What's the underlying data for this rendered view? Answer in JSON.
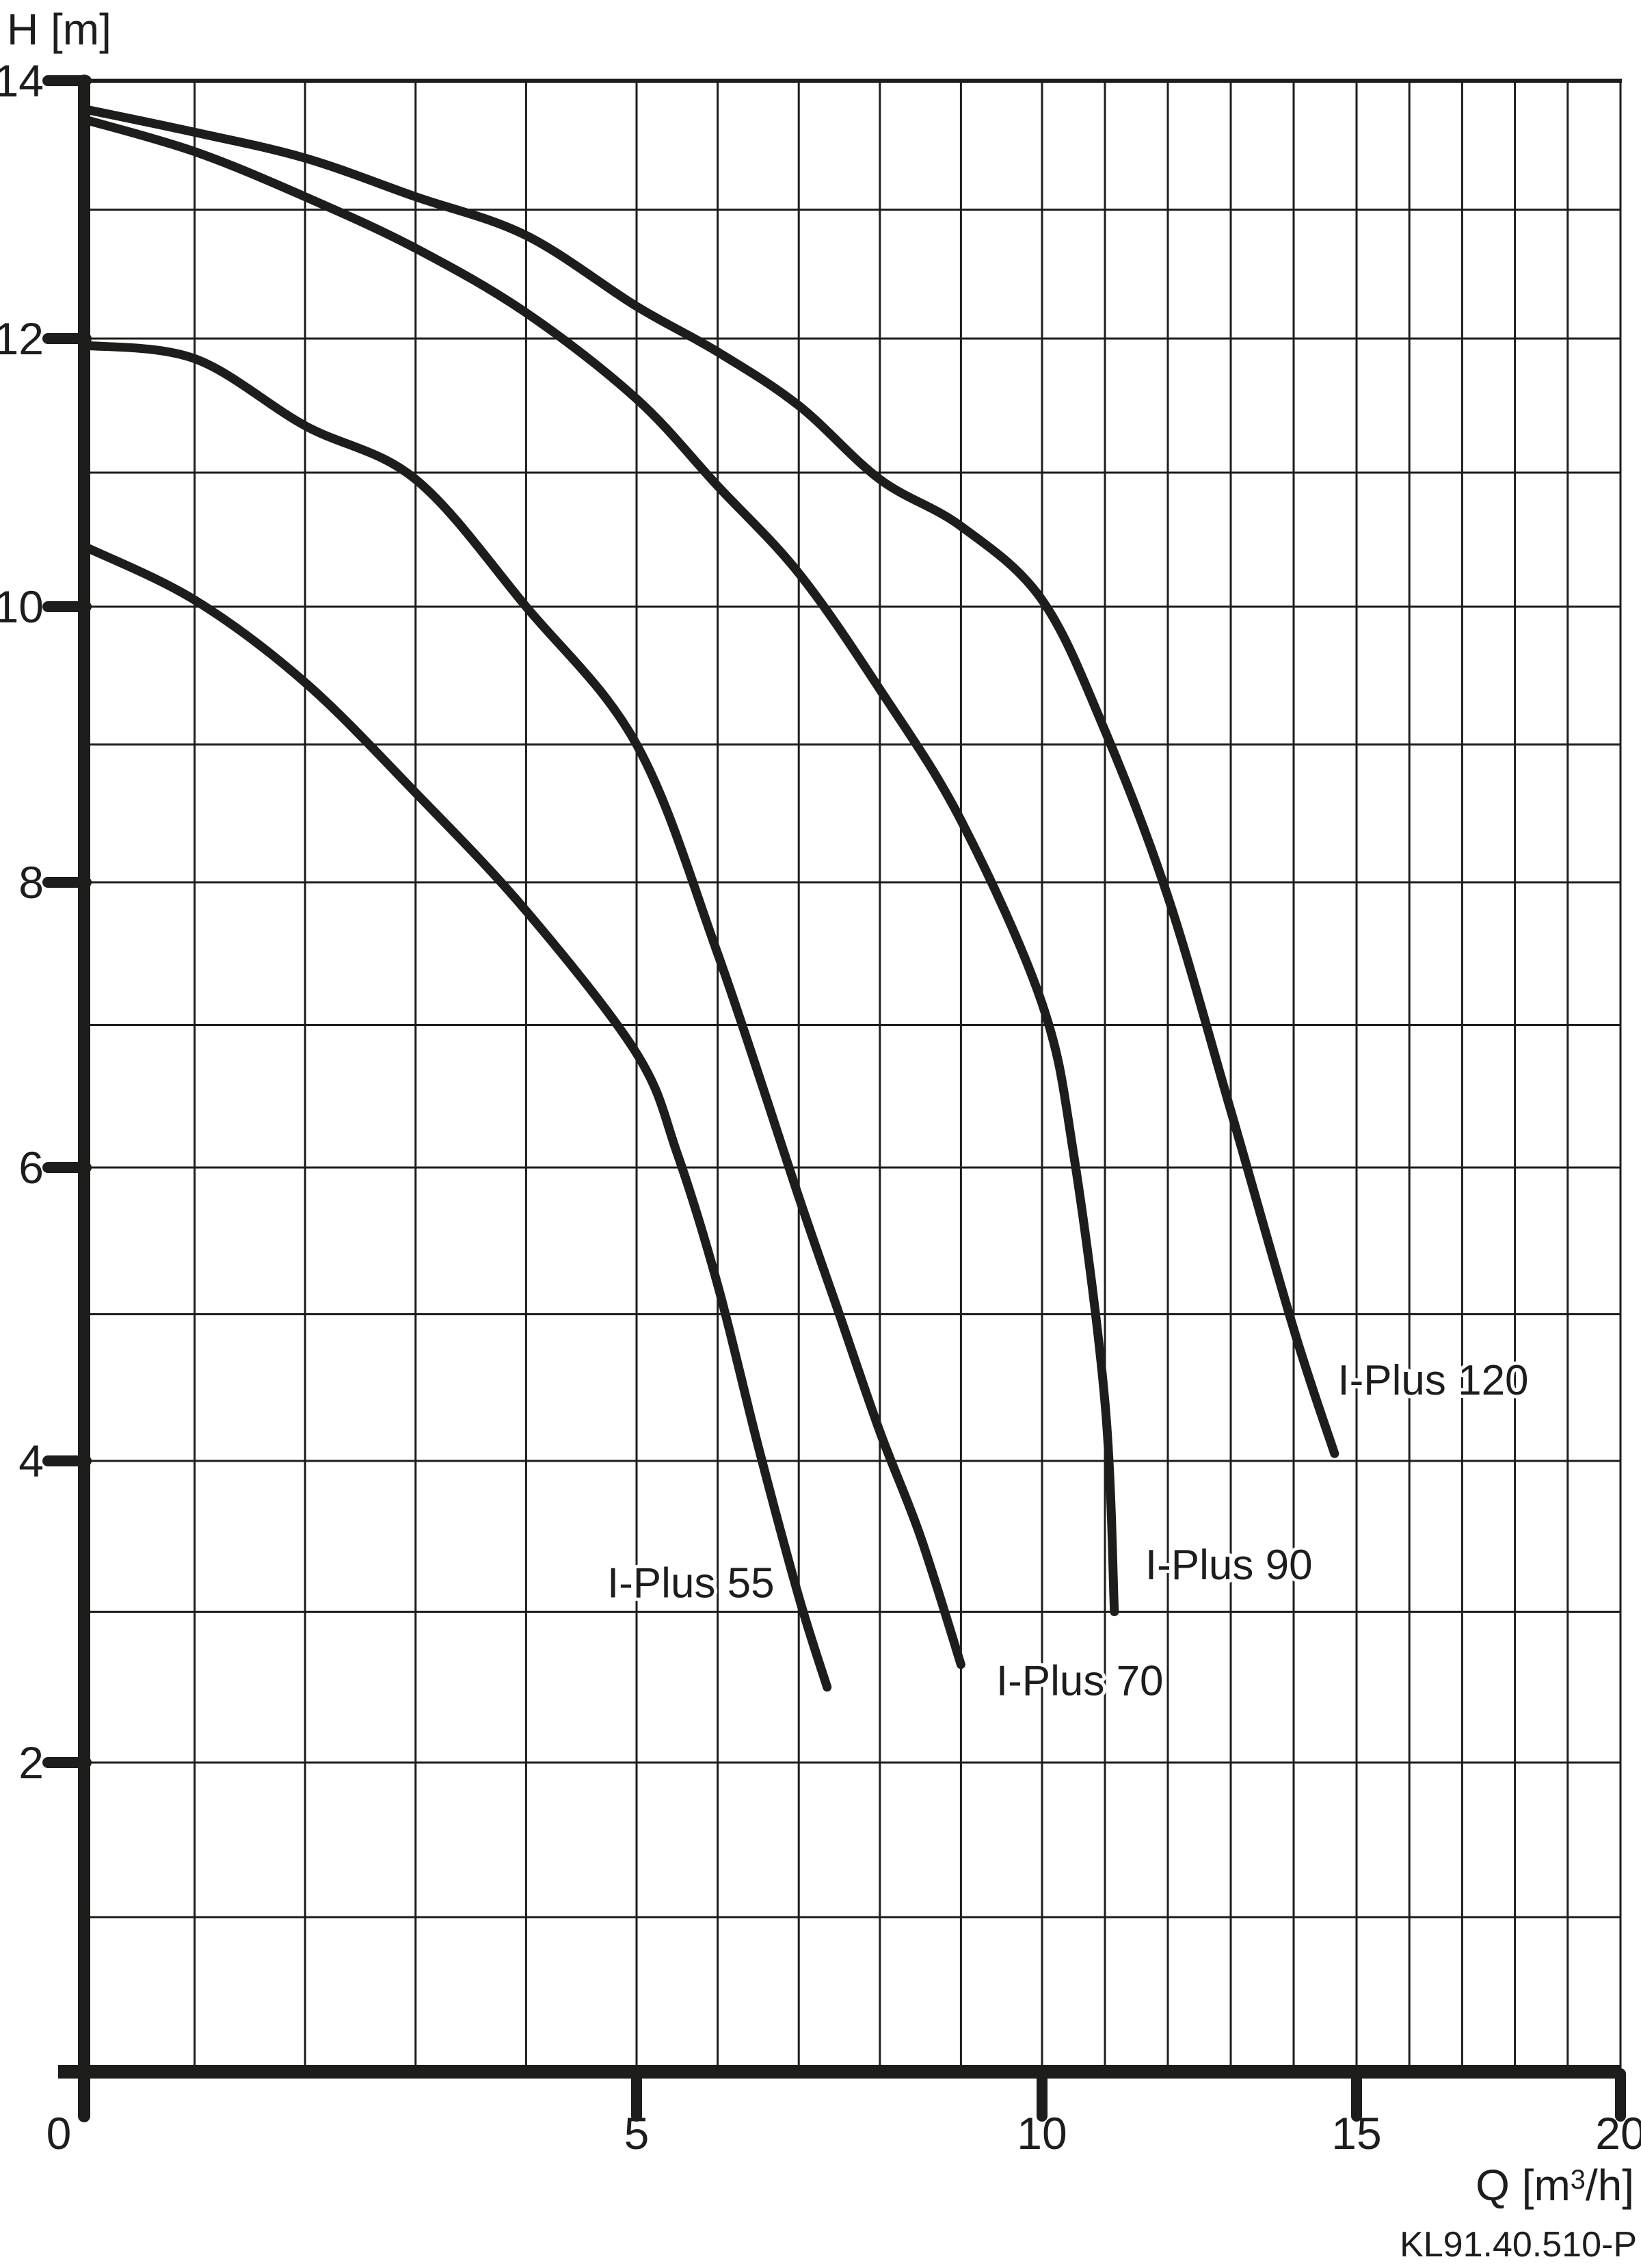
{
  "page": {
    "background": "#ffffff",
    "ink": "#1d1d1b"
  },
  "chart_data": {
    "type": "line",
    "title": "",
    "xlabel": "Q [m³/h]",
    "ylabel": "H [m]",
    "xlim": [
      0,
      20
    ],
    "ylim": [
      0,
      14
    ],
    "x_major_ticks": [
      0,
      5,
      10,
      15,
      20
    ],
    "y_major_ticks": [
      2,
      4,
      6,
      8,
      10,
      12,
      14
    ],
    "x_minor_step": 1,
    "y_minor_step": 1,
    "grid": true,
    "legend_position": "inline-labels-near-curve-ends",
    "series": [
      {
        "name": "I-Plus 55",
        "points": [
          [
            0,
            10.45
          ],
          [
            1,
            10.05
          ],
          [
            2,
            9.45
          ],
          [
            3,
            8.65
          ],
          [
            4,
            7.8
          ],
          [
            5,
            6.8
          ],
          [
            5.5,
            6.1
          ],
          [
            6,
            5.2
          ],
          [
            6.5,
            4.1
          ],
          [
            7,
            3.1
          ],
          [
            7.35,
            2.5
          ]
        ],
        "label_pos": [
          6.7,
          3.2
        ],
        "label_anchor": "end"
      },
      {
        "name": "I-Plus 70",
        "points": [
          [
            0,
            11.95
          ],
          [
            1,
            11.85
          ],
          [
            2,
            11.35
          ],
          [
            3,
            10.95
          ],
          [
            4,
            10.0
          ],
          [
            5,
            9.0
          ],
          [
            6,
            7.5
          ],
          [
            7,
            5.8
          ],
          [
            7.5,
            5.0
          ],
          [
            8,
            4.2
          ],
          [
            8.5,
            3.5
          ],
          [
            9,
            2.65
          ]
        ],
        "label_pos": [
          10.6,
          2.55
        ],
        "label_anchor": "middle"
      },
      {
        "name": "I-Plus 90",
        "points": [
          [
            0,
            13.7
          ],
          [
            1,
            13.45
          ],
          [
            2,
            13.1
          ],
          [
            3,
            12.7
          ],
          [
            4,
            12.2
          ],
          [
            5,
            11.55
          ],
          [
            6,
            10.9
          ],
          [
            7,
            10.25
          ],
          [
            8,
            9.4
          ],
          [
            9,
            8.45
          ],
          [
            10,
            7.15
          ],
          [
            10.5,
            6.1
          ],
          [
            11,
            4.4
          ],
          [
            11.15,
            3.0
          ]
        ],
        "label_pos": [
          11.64,
          3.32
        ],
        "label_anchor": "start"
      },
      {
        "name": "I-Plus 120",
        "points": [
          [
            0,
            13.78
          ],
          [
            1,
            13.6
          ],
          [
            2,
            13.4
          ],
          [
            3,
            13.1
          ],
          [
            4,
            12.8
          ],
          [
            5,
            12.25
          ],
          [
            6,
            11.9
          ],
          [
            7,
            11.5
          ],
          [
            8,
            10.95
          ],
          [
            9,
            10.6
          ],
          [
            10,
            10.05
          ],
          [
            11,
            9.1
          ],
          [
            12,
            7.9
          ],
          [
            13,
            6.4
          ],
          [
            14,
            4.9
          ],
          [
            14.65,
            4.05
          ]
        ],
        "label_pos": [
          14.7,
          4.56
        ],
        "label_anchor": "start"
      }
    ],
    "footnote": "KL91.40.510-P"
  }
}
